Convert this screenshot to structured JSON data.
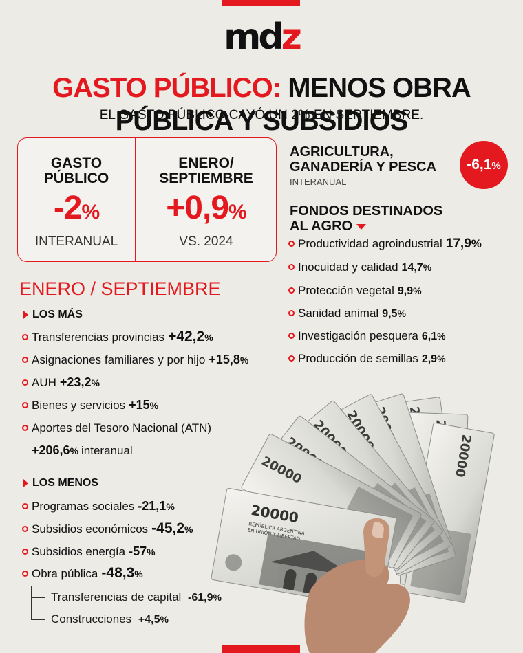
{
  "logo": {
    "text_main": "md",
    "text_accent": "z"
  },
  "headline": {
    "red": "GASTO PÚBLICO:",
    "black": "MENOS OBRA PÚBLICA Y SUBSIDIOS"
  },
  "subhead": "EL GASTO PÚBLICO CAYÓ UN 2% EN SEPTIEMBRE.",
  "stats": [
    {
      "label_l1": "GASTO",
      "label_l2": "PÚBLICO",
      "value": "-2",
      "unit": "%",
      "note": "INTERANUAL"
    },
    {
      "label_l1": "ENERO/",
      "label_l2": "SEPTIEMBRE",
      "value": "+0,9",
      "unit": "%",
      "note": "VS. 2024"
    }
  ],
  "section_title": "ENERO / SEPTIEMBRE",
  "los_mas": {
    "title": "LOS MÁS",
    "items": [
      {
        "label": "Transferencias provincias",
        "value": "+42,2",
        "unit": "%"
      },
      {
        "label": "Asignaciones familiares y por hijo",
        "value": "+15,8",
        "unit": "%"
      },
      {
        "label": "AUH",
        "value": "+23,2",
        "unit": "%"
      },
      {
        "label": "Bienes y servicios",
        "value": "+15",
        "unit": "%"
      },
      {
        "label": "Aportes del Tesoro Nacional (ATN)",
        "value": "+206,6",
        "unit": "%",
        "suffix": "interanual"
      }
    ]
  },
  "los_menos": {
    "title": "LOS MENOS",
    "items": [
      {
        "label": "Programas sociales",
        "value": "-21,1",
        "unit": "%"
      },
      {
        "label": "Subsidios económicos",
        "value": "-45,2",
        "unit": "%"
      },
      {
        "label": "Subsidios energía",
        "value": "-57",
        "unit": "%"
      },
      {
        "label": "Obra pública",
        "value": "-48,3",
        "unit": "%"
      }
    ],
    "sub_items": [
      {
        "label": "Transferencias de capital",
        "value": "-61,9",
        "unit": "%"
      },
      {
        "label": "Construcciones",
        "value": "+4,5",
        "unit": "%"
      }
    ]
  },
  "agro": {
    "title_l1": "AGRICULTURA,",
    "title_l2": "GANADERÍA Y PESCA",
    "sub": "INTERANUAL",
    "badge_value": "-6,1",
    "badge_unit": "%"
  },
  "fondos": {
    "title_l1": "FONDOS DESTINADOS",
    "title_l2": "AL AGRO",
    "items": [
      {
        "label": "Productividad agroindustrial",
        "value": "17,9",
        "unit": "%"
      },
      {
        "label": "Inocuidad y calidad",
        "value": "14,7",
        "unit": "%"
      },
      {
        "label": "Protección vegetal",
        "value": "9,9",
        "unit": "%"
      },
      {
        "label": "Sanidad animal",
        "value": "9,5",
        "unit": "%"
      },
      {
        "label": "Investigación pesquera",
        "value": "6,1",
        "unit": "%"
      },
      {
        "label": "Producción de semillas",
        "value": "2,9",
        "unit": "%"
      }
    ]
  },
  "banknote": {
    "denomination": "20000",
    "issuer_l1": "REPÚBLICA ARGENTINA",
    "issuer_l2": "EN UNIÓN Y LIBERTAD"
  },
  "colors": {
    "accent": "#e3191f",
    "background": "#ecebe6",
    "text": "#1a1a1a"
  }
}
